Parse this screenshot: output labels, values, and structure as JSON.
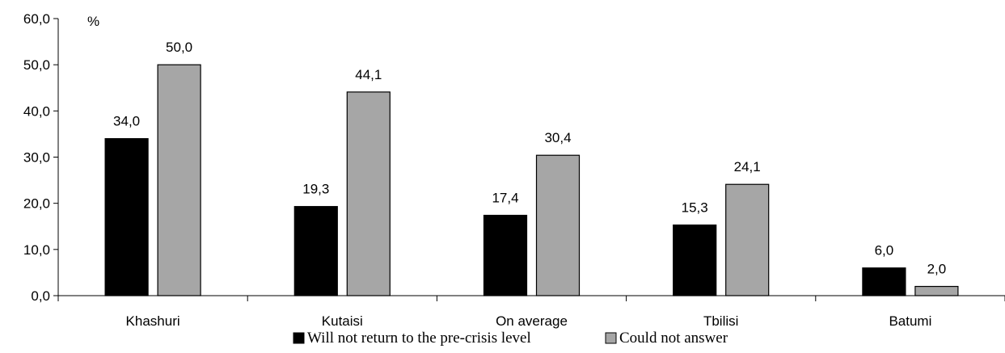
{
  "chart_data": {
    "type": "bar",
    "categories": [
      "Khashuri",
      "Kutaisi",
      "On average",
      "Tbilisi",
      "Batumi"
    ],
    "series": [
      {
        "name": "Will not return to the pre-crisis level",
        "color": "#000000",
        "values": [
          34.0,
          19.3,
          17.4,
          15.3,
          6.0
        ],
        "labels": [
          "34,0",
          "19,3",
          "17,4",
          "15,3",
          "6,0"
        ]
      },
      {
        "name": "Could not answer",
        "color": "#a6a6a6",
        "values": [
          50.0,
          44.1,
          30.4,
          24.1,
          2.0
        ],
        "labels": [
          "50,0",
          "44,1",
          "30,4",
          "24,1",
          "2,0"
        ]
      }
    ],
    "y_unit": "%",
    "ylim": [
      0,
      60
    ],
    "yticks": [
      0,
      10,
      20,
      30,
      40,
      50,
      60
    ],
    "ytick_labels": [
      "0,0",
      "10,0",
      "20,0",
      "30,0",
      "40,0",
      "50,0",
      "60,0"
    ],
    "grid": false,
    "legend_position": "bottom"
  }
}
